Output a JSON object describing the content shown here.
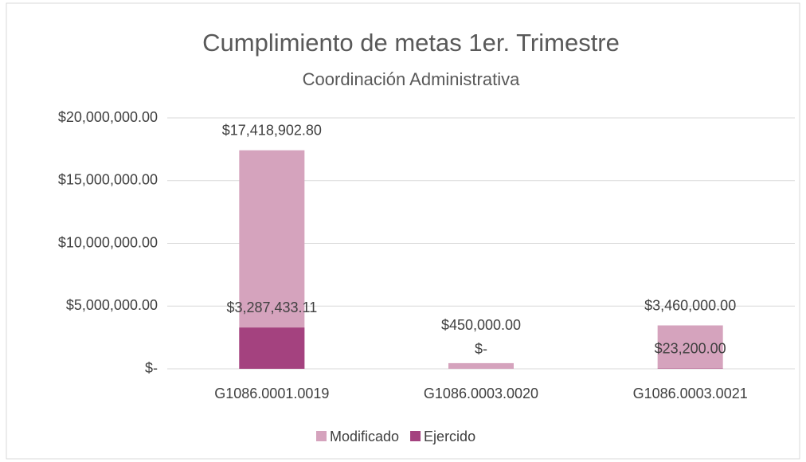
{
  "chart_data": {
    "type": "bar",
    "title": "Cumplimiento de metas 1er. Trimestre",
    "subtitle": "Coordinación Administrativa",
    "categories": [
      "G1086.0001.0019",
      "G1086.0003.0020",
      "G1086.0003.0021"
    ],
    "series": [
      {
        "name": "Modificado",
        "color": "#d5a3bd",
        "values": [
          17418902.8,
          450000,
          3460000
        ],
        "value_labels": [
          "$17,418,902.80",
          "$450,000.00",
          "$3,460,000.00"
        ]
      },
      {
        "name": "Ejercido",
        "color": "#a4427f",
        "values": [
          3287433.11,
          0,
          23200
        ],
        "value_labels": [
          "$3,287,433.11",
          "$-",
          "$23,200.00"
        ]
      }
    ],
    "ylim": [
      0,
      20000000
    ],
    "yticks": [
      {
        "value": 0,
        "label": "$-"
      },
      {
        "value": 5000000,
        "label": "$5,000,000.00"
      },
      {
        "value": 10000000,
        "label": "$10,000,000.00"
      },
      {
        "value": 15000000,
        "label": "$15,000,000.00"
      },
      {
        "value": 20000000,
        "label": "$20,000,000.00"
      }
    ],
    "grid": true,
    "legend": "bottom"
  }
}
